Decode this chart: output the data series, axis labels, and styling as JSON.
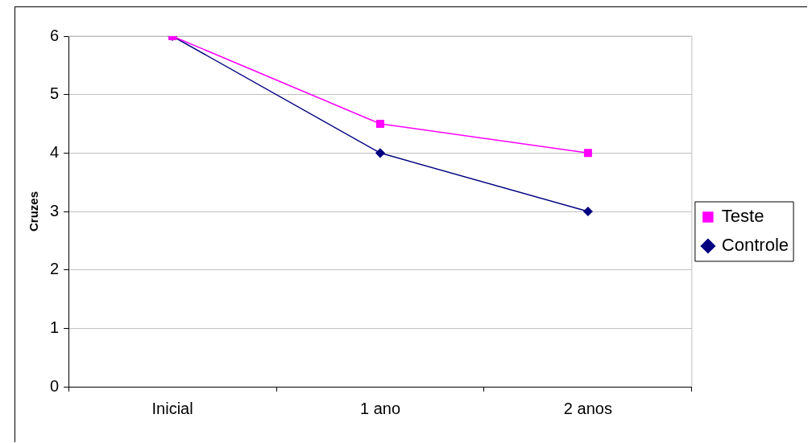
{
  "chart_data": {
    "type": "line",
    "ylabel": "Cruzes",
    "categories": [
      "Inicial",
      "1 ano",
      "2 anos"
    ],
    "series": [
      {
        "name": "Controle",
        "color": "#000080",
        "marker": "diamond",
        "values": [
          6,
          4,
          3
        ]
      },
      {
        "name": "Teste",
        "color": "#ff00ff",
        "marker": "square",
        "values": [
          6,
          4.5,
          4
        ]
      }
    ],
    "ylim": [
      0,
      6
    ],
    "yticks": [
      0,
      1,
      2,
      3,
      4,
      5,
      6
    ],
    "grid": "y",
    "legend": "right"
  }
}
